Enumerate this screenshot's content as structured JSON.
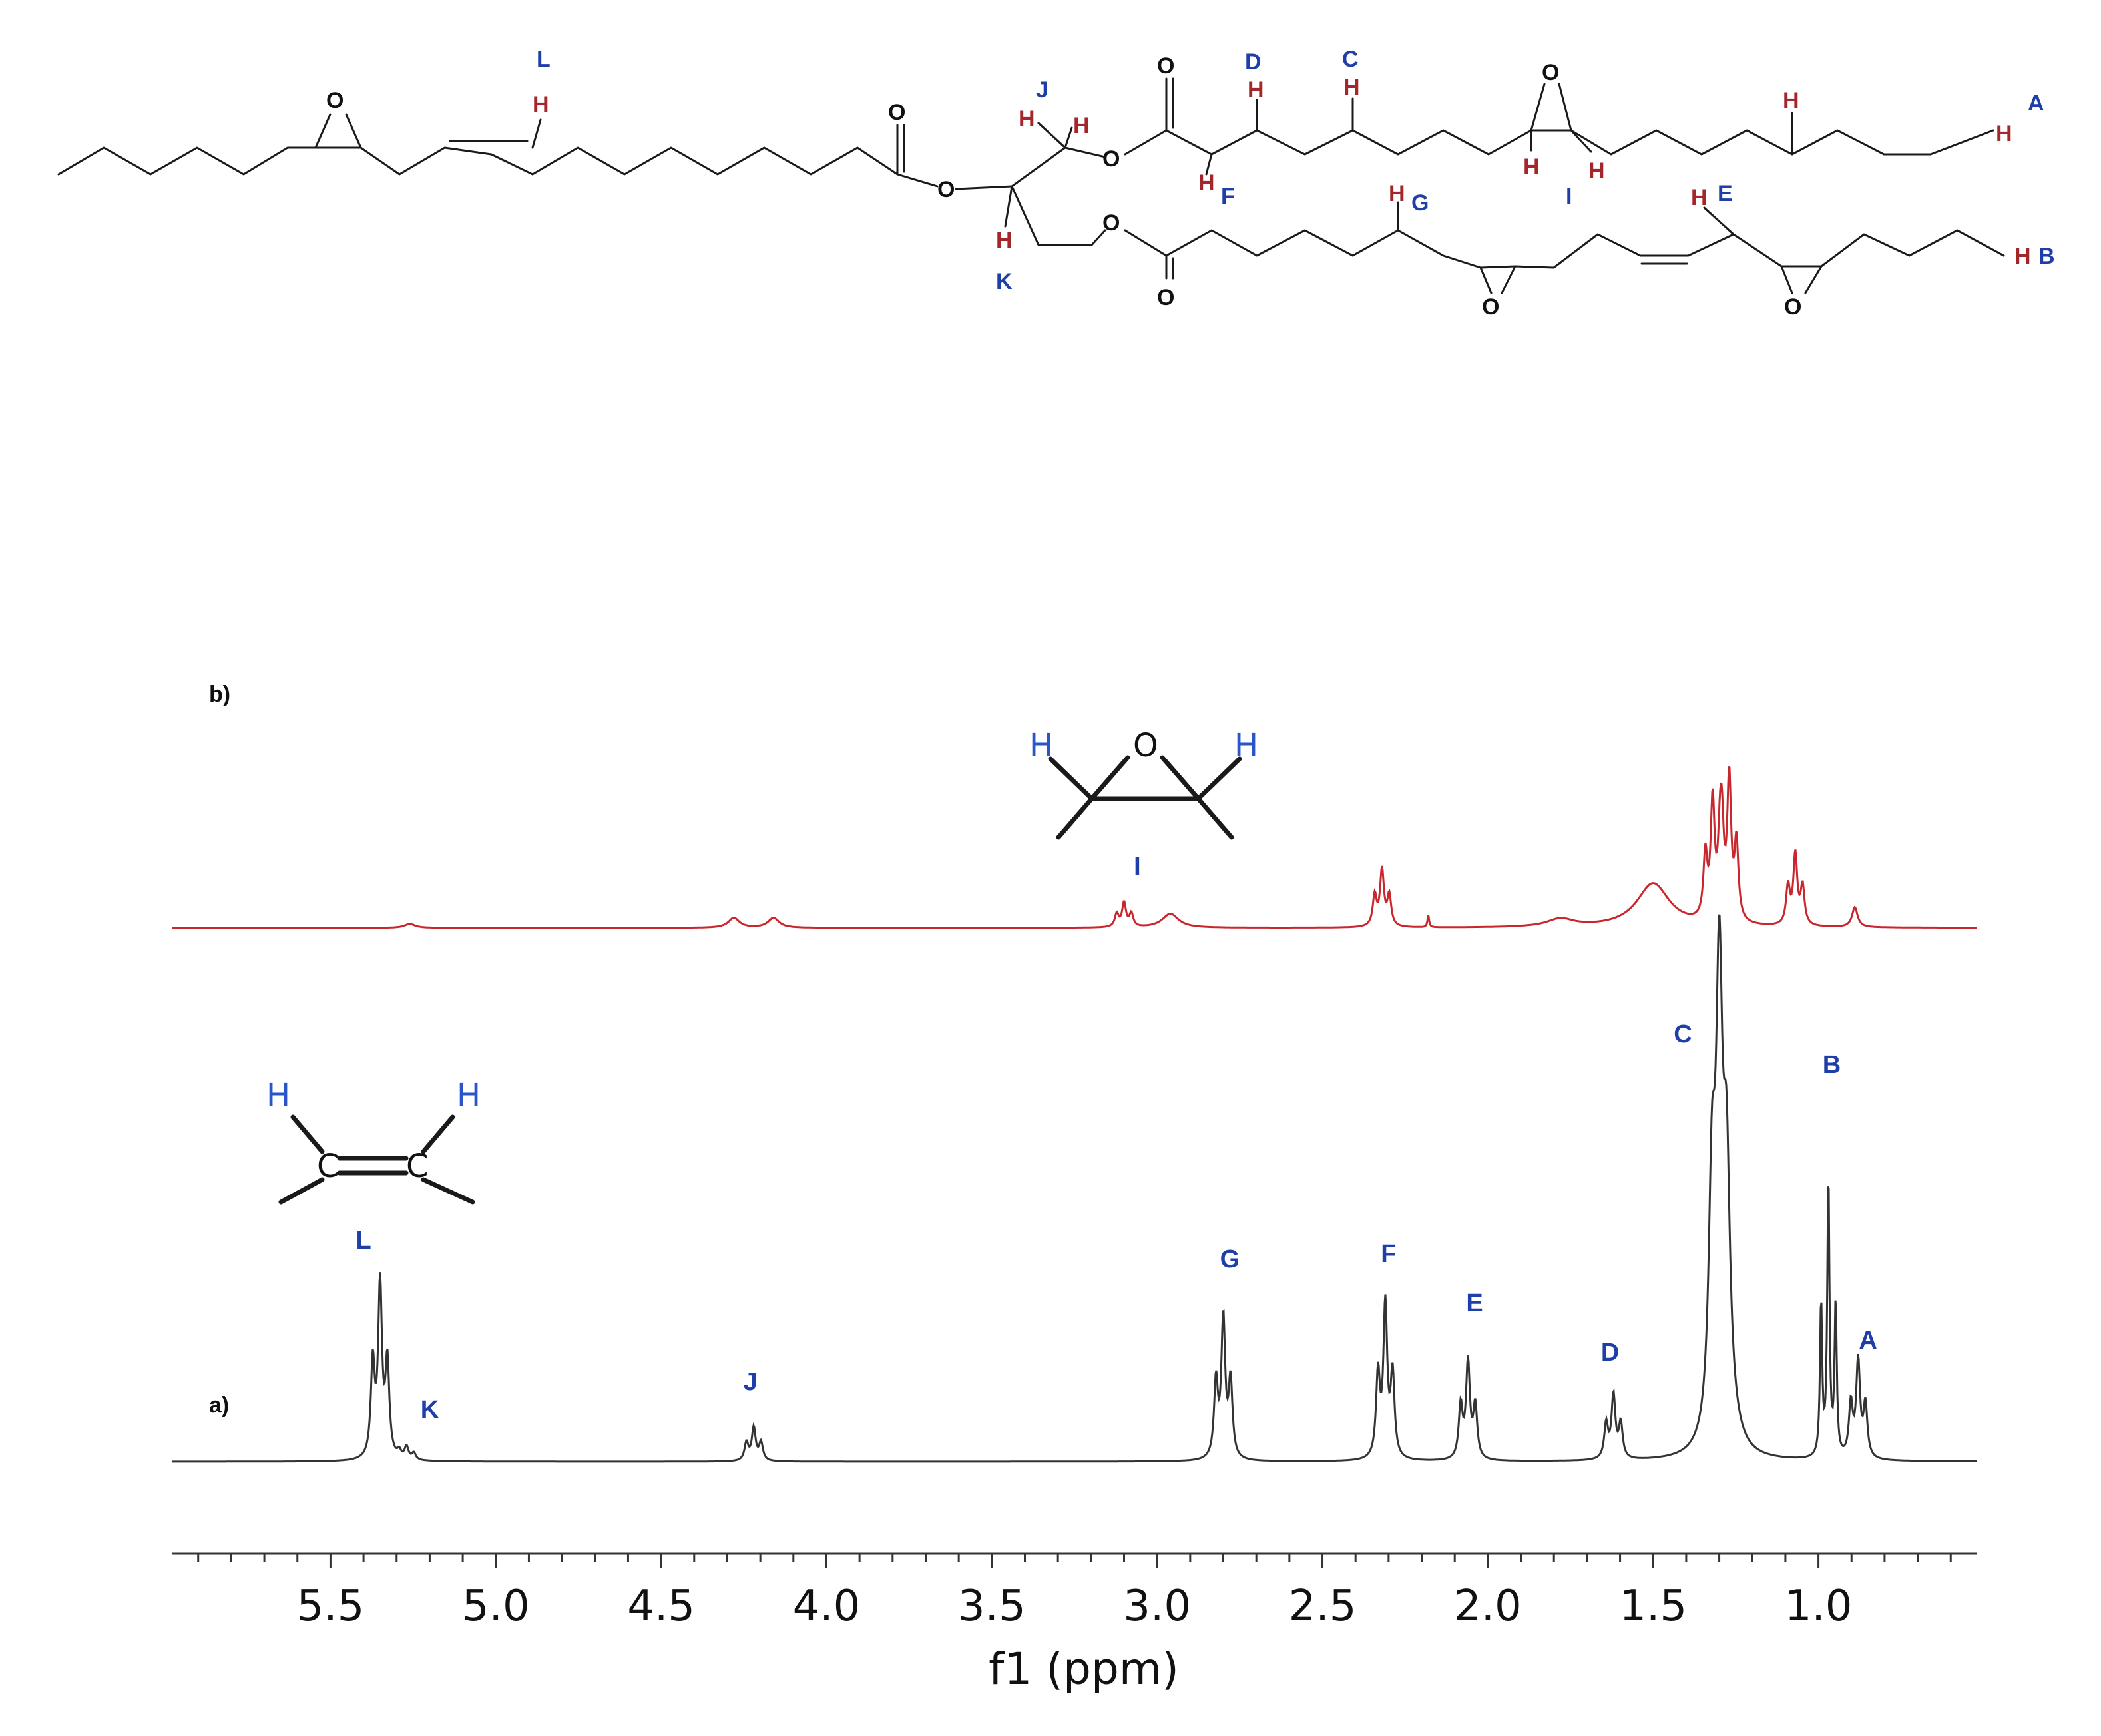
{
  "chart_data": {
    "type": "line",
    "xlabel": "f1 (ppm)",
    "xlim": [
      5.98,
      0.52
    ],
    "x_ticks": [
      "5.5",
      "5.0",
      "4.5",
      "4.0",
      "3.5",
      "3.0",
      "2.5",
      "2.0",
      "1.5",
      "1.0"
    ],
    "panels": [
      "a)",
      "b)"
    ],
    "series": [
      {
        "panel": "a)",
        "color": "#333333",
        "peaks": [
          {
            "label": "L",
            "ppm": 5.35,
            "intensity": 0.68
          },
          {
            "label": "K",
            "ppm": 5.27,
            "intensity": 0.05
          },
          {
            "label": "J",
            "ppm": 4.22,
            "intensity": 0.13
          },
          {
            "label": "G",
            "ppm": 2.8,
            "intensity": 0.55
          },
          {
            "label": "F",
            "ppm": 2.31,
            "intensity": 0.6
          },
          {
            "label": "E",
            "ppm": 2.06,
            "intensity": 0.38
          },
          {
            "label": "D",
            "ppm": 1.62,
            "intensity": 0.25
          },
          {
            "label": "C",
            "ppm": 1.3,
            "intensity": 1.7
          },
          {
            "label": "B",
            "ppm": 0.97,
            "intensity": 1.1
          },
          {
            "label": "A",
            "ppm": 0.88,
            "intensity": 0.38
          }
        ]
      },
      {
        "panel": "b)",
        "color": "#c8282d",
        "peaks": [
          {
            "label": "I",
            "ppm": 3.1,
            "intensity": 0.12
          },
          {
            "label": "",
            "ppm": 2.32,
            "intensity": 0.28
          },
          {
            "label": "",
            "ppm": 1.32,
            "intensity": 0.58
          },
          {
            "label": "",
            "ppm": 1.27,
            "intensity": 0.7
          },
          {
            "label": "",
            "ppm": 1.07,
            "intensity": 0.35
          }
        ]
      }
    ]
  },
  "structure": {
    "oxygen": "O",
    "hydrogen": "H",
    "carbon": "C",
    "proton_labels": [
      "A",
      "B",
      "C",
      "D",
      "E",
      "F",
      "G",
      "I",
      "J",
      "K",
      "L"
    ]
  },
  "colors": {
    "spectrum_a": "#333333",
    "spectrum_b": "#c8282d",
    "label_blue": "#1f3fa8",
    "hydrogen_red": "#a3262a"
  }
}
